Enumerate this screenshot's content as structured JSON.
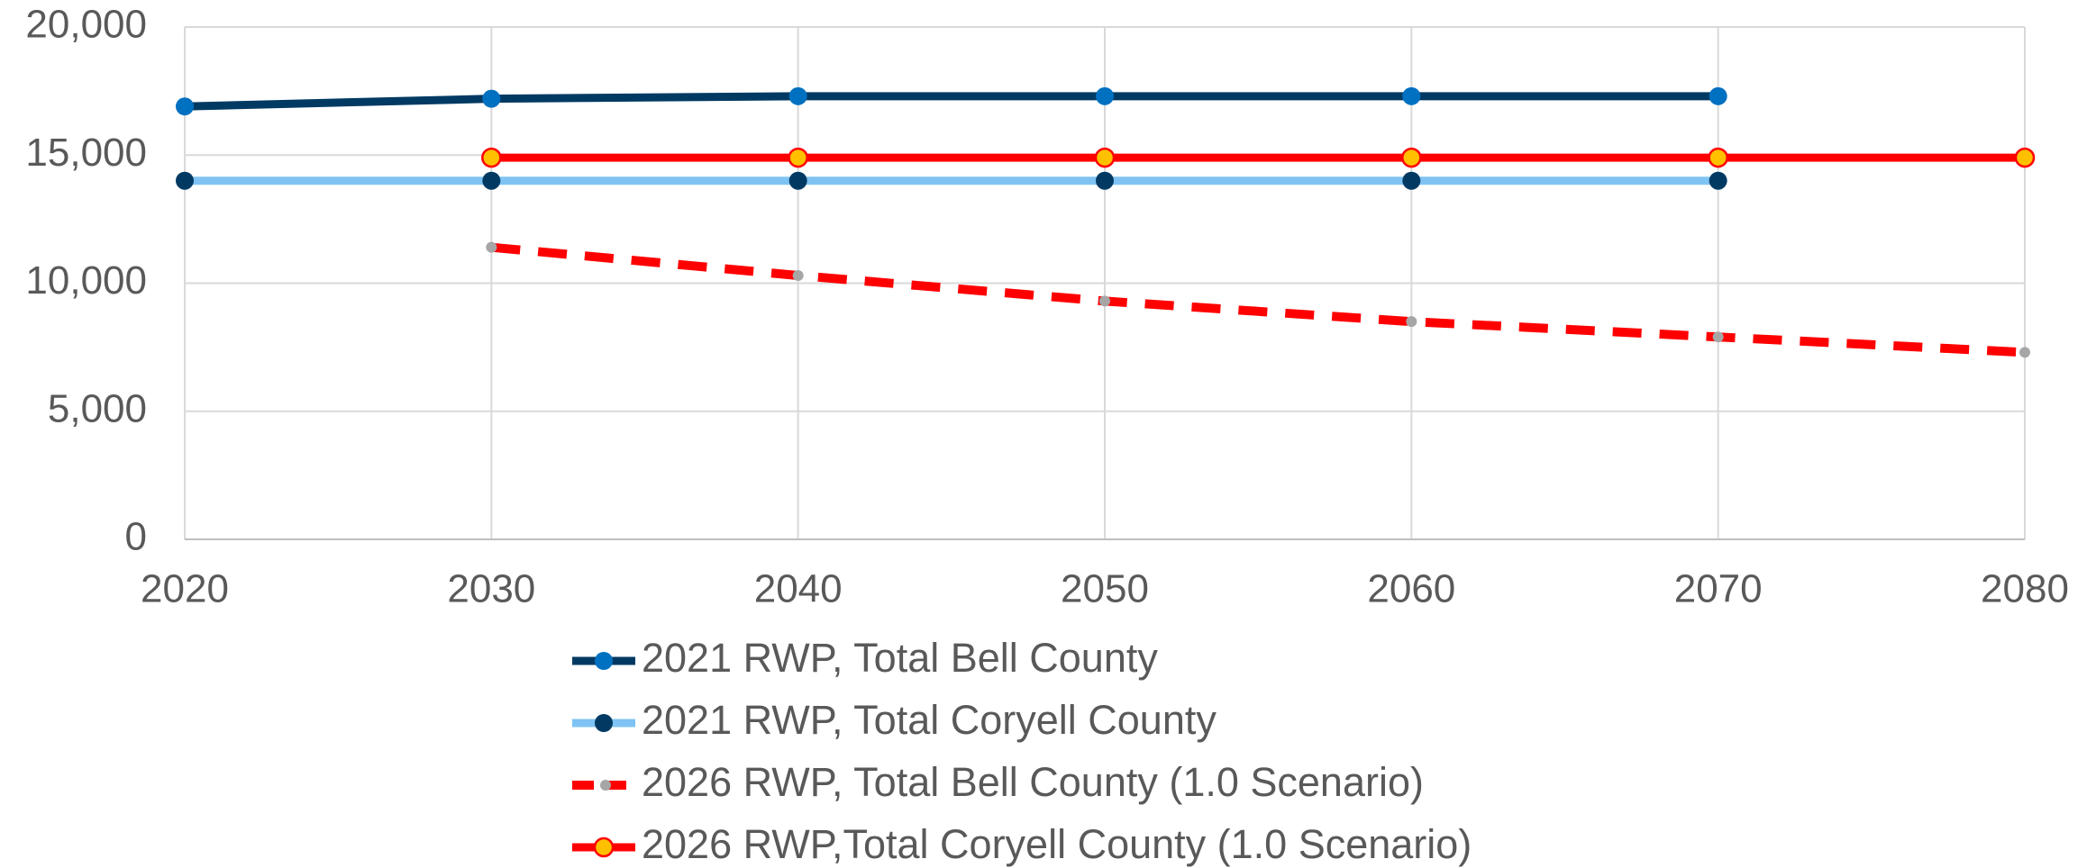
{
  "chart_data": {
    "type": "line",
    "x": [
      2020,
      2030,
      2040,
      2050,
      2060,
      2070,
      2080
    ],
    "xlim": [
      2020,
      2080
    ],
    "xticks": [
      2020,
      2030,
      2040,
      2050,
      2060,
      2070,
      2080
    ],
    "ylim": [
      0,
      20000
    ],
    "yticks": [
      0,
      {
        "value": 5000,
        "label": "5,000"
      },
      {
        "value": 10000,
        "label": "10,000"
      },
      {
        "value": 15000,
        "label": "15,000"
      },
      {
        "value": 20000,
        "label": "20,000"
      }
    ],
    "grid": true,
    "legend": "bottom",
    "series": [
      {
        "name": "2021 RWP, Total Bell County",
        "color": "#003a63",
        "marker_color": "#0070c0",
        "dashed": false,
        "values": [
          16900,
          17200,
          17300,
          17300,
          17300,
          17300,
          null
        ]
      },
      {
        "name": "2021 RWP, Total Coryell County",
        "color": "#7fc3f4",
        "marker_color": "#003a63",
        "dashed": false,
        "values": [
          14000,
          14000,
          14000,
          14000,
          14000,
          14000,
          null
        ]
      },
      {
        "name": "2026 RWP, Total Bell County (1.0 Scenario)",
        "color": "#ff0000",
        "marker_color": "#a6a6a6",
        "dashed": true,
        "values": [
          null,
          11400,
          10300,
          9300,
          8500,
          7900,
          7300
        ]
      },
      {
        "name": "2026 RWP,Total Coryell County (1.0 Scenario)",
        "color": "#ff0000",
        "marker_color": "#ffc000",
        "dashed": false,
        "values": [
          null,
          14900,
          14900,
          14900,
          14900,
          14900,
          14900
        ]
      }
    ]
  }
}
